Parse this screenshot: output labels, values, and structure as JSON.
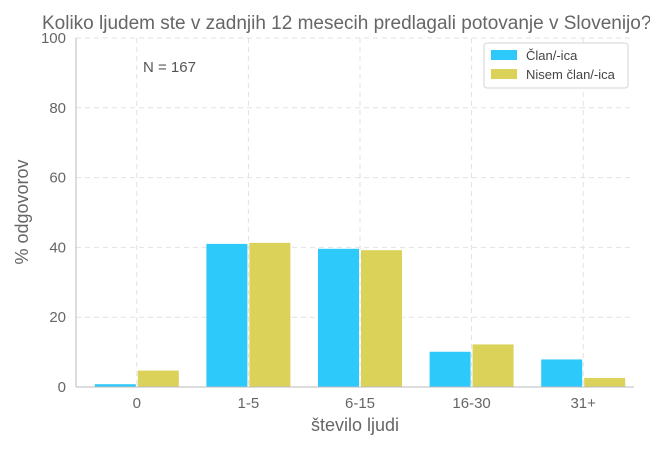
{
  "chart_data": {
    "type": "bar",
    "title": "Koliko ljudem ste v zadnjih 12 mesecih predlagali potovanje v Slovenijo?",
    "xlabel": "število ljudi",
    "ylabel": "% odgovorov",
    "annotation": "N = 167",
    "categories": [
      "0",
      "1-5",
      "6-15",
      "16-30",
      "31+"
    ],
    "ylim": [
      0,
      100
    ],
    "yticks": [
      0,
      20,
      40,
      60,
      80,
      100
    ],
    "grid": true,
    "legend_position": "top-right",
    "series": [
      {
        "name": "Član/-ica",
        "color": "#2ec9fb",
        "values": [
          0.8,
          41.0,
          39.6,
          10.1,
          7.9
        ]
      },
      {
        "name": "Nisem član/-ica",
        "color": "#dbd25a",
        "values": [
          4.7,
          41.3,
          39.2,
          12.2,
          2.6
        ]
      }
    ]
  }
}
